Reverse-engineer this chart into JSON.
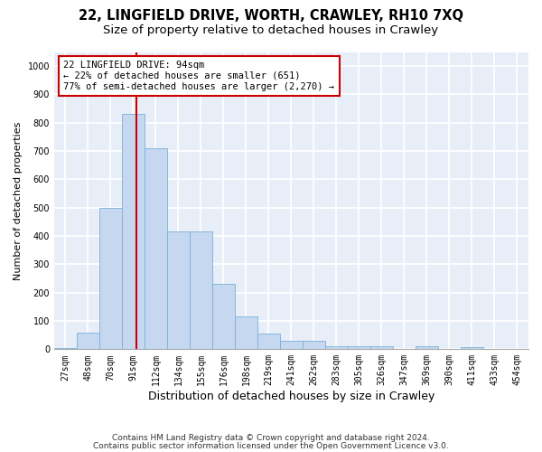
{
  "title1": "22, LINGFIELD DRIVE, WORTH, CRAWLEY, RH10 7XQ",
  "title2": "Size of property relative to detached houses in Crawley",
  "xlabel": "Distribution of detached houses by size in Crawley",
  "ylabel": "Number of detached properties",
  "bar_labels": [
    "27sqm",
    "48sqm",
    "70sqm",
    "91sqm",
    "112sqm",
    "134sqm",
    "155sqm",
    "176sqm",
    "198sqm",
    "219sqm",
    "241sqm",
    "262sqm",
    "283sqm",
    "305sqm",
    "326sqm",
    "347sqm",
    "369sqm",
    "390sqm",
    "411sqm",
    "433sqm",
    "454sqm"
  ],
  "bar_heights": [
    5,
    60,
    500,
    830,
    710,
    415,
    415,
    230,
    115,
    55,
    30,
    30,
    12,
    12,
    12,
    0,
    10,
    0,
    8,
    0,
    0
  ],
  "bar_color": "#c5d8f0",
  "bar_edgecolor": "#7ab0d8",
  "bar_width": 1.0,
  "vline_x": 3.15,
  "vline_color": "#cc0000",
  "annotation_text": "22 LINGFIELD DRIVE: 94sqm\n← 22% of detached houses are smaller (651)\n77% of semi-detached houses are larger (2,270) →",
  "annotation_box_edgecolor": "#cc0000",
  "annotation_box_facecolor": "#ffffff",
  "ylim": [
    0,
    1050
  ],
  "yticks": [
    0,
    100,
    200,
    300,
    400,
    500,
    600,
    700,
    800,
    900,
    1000
  ],
  "footer1": "Contains HM Land Registry data © Crown copyright and database right 2024.",
  "footer2": "Contains public sector information licensed under the Open Government Licence v3.0.",
  "bg_color": "#e8eef8",
  "grid_color": "#ffffff",
  "title1_fontsize": 10.5,
  "title2_fontsize": 9.5,
  "xlabel_fontsize": 9,
  "ylabel_fontsize": 8,
  "tick_fontsize": 7,
  "annotation_fontsize": 7.5,
  "footer_fontsize": 6.5
}
